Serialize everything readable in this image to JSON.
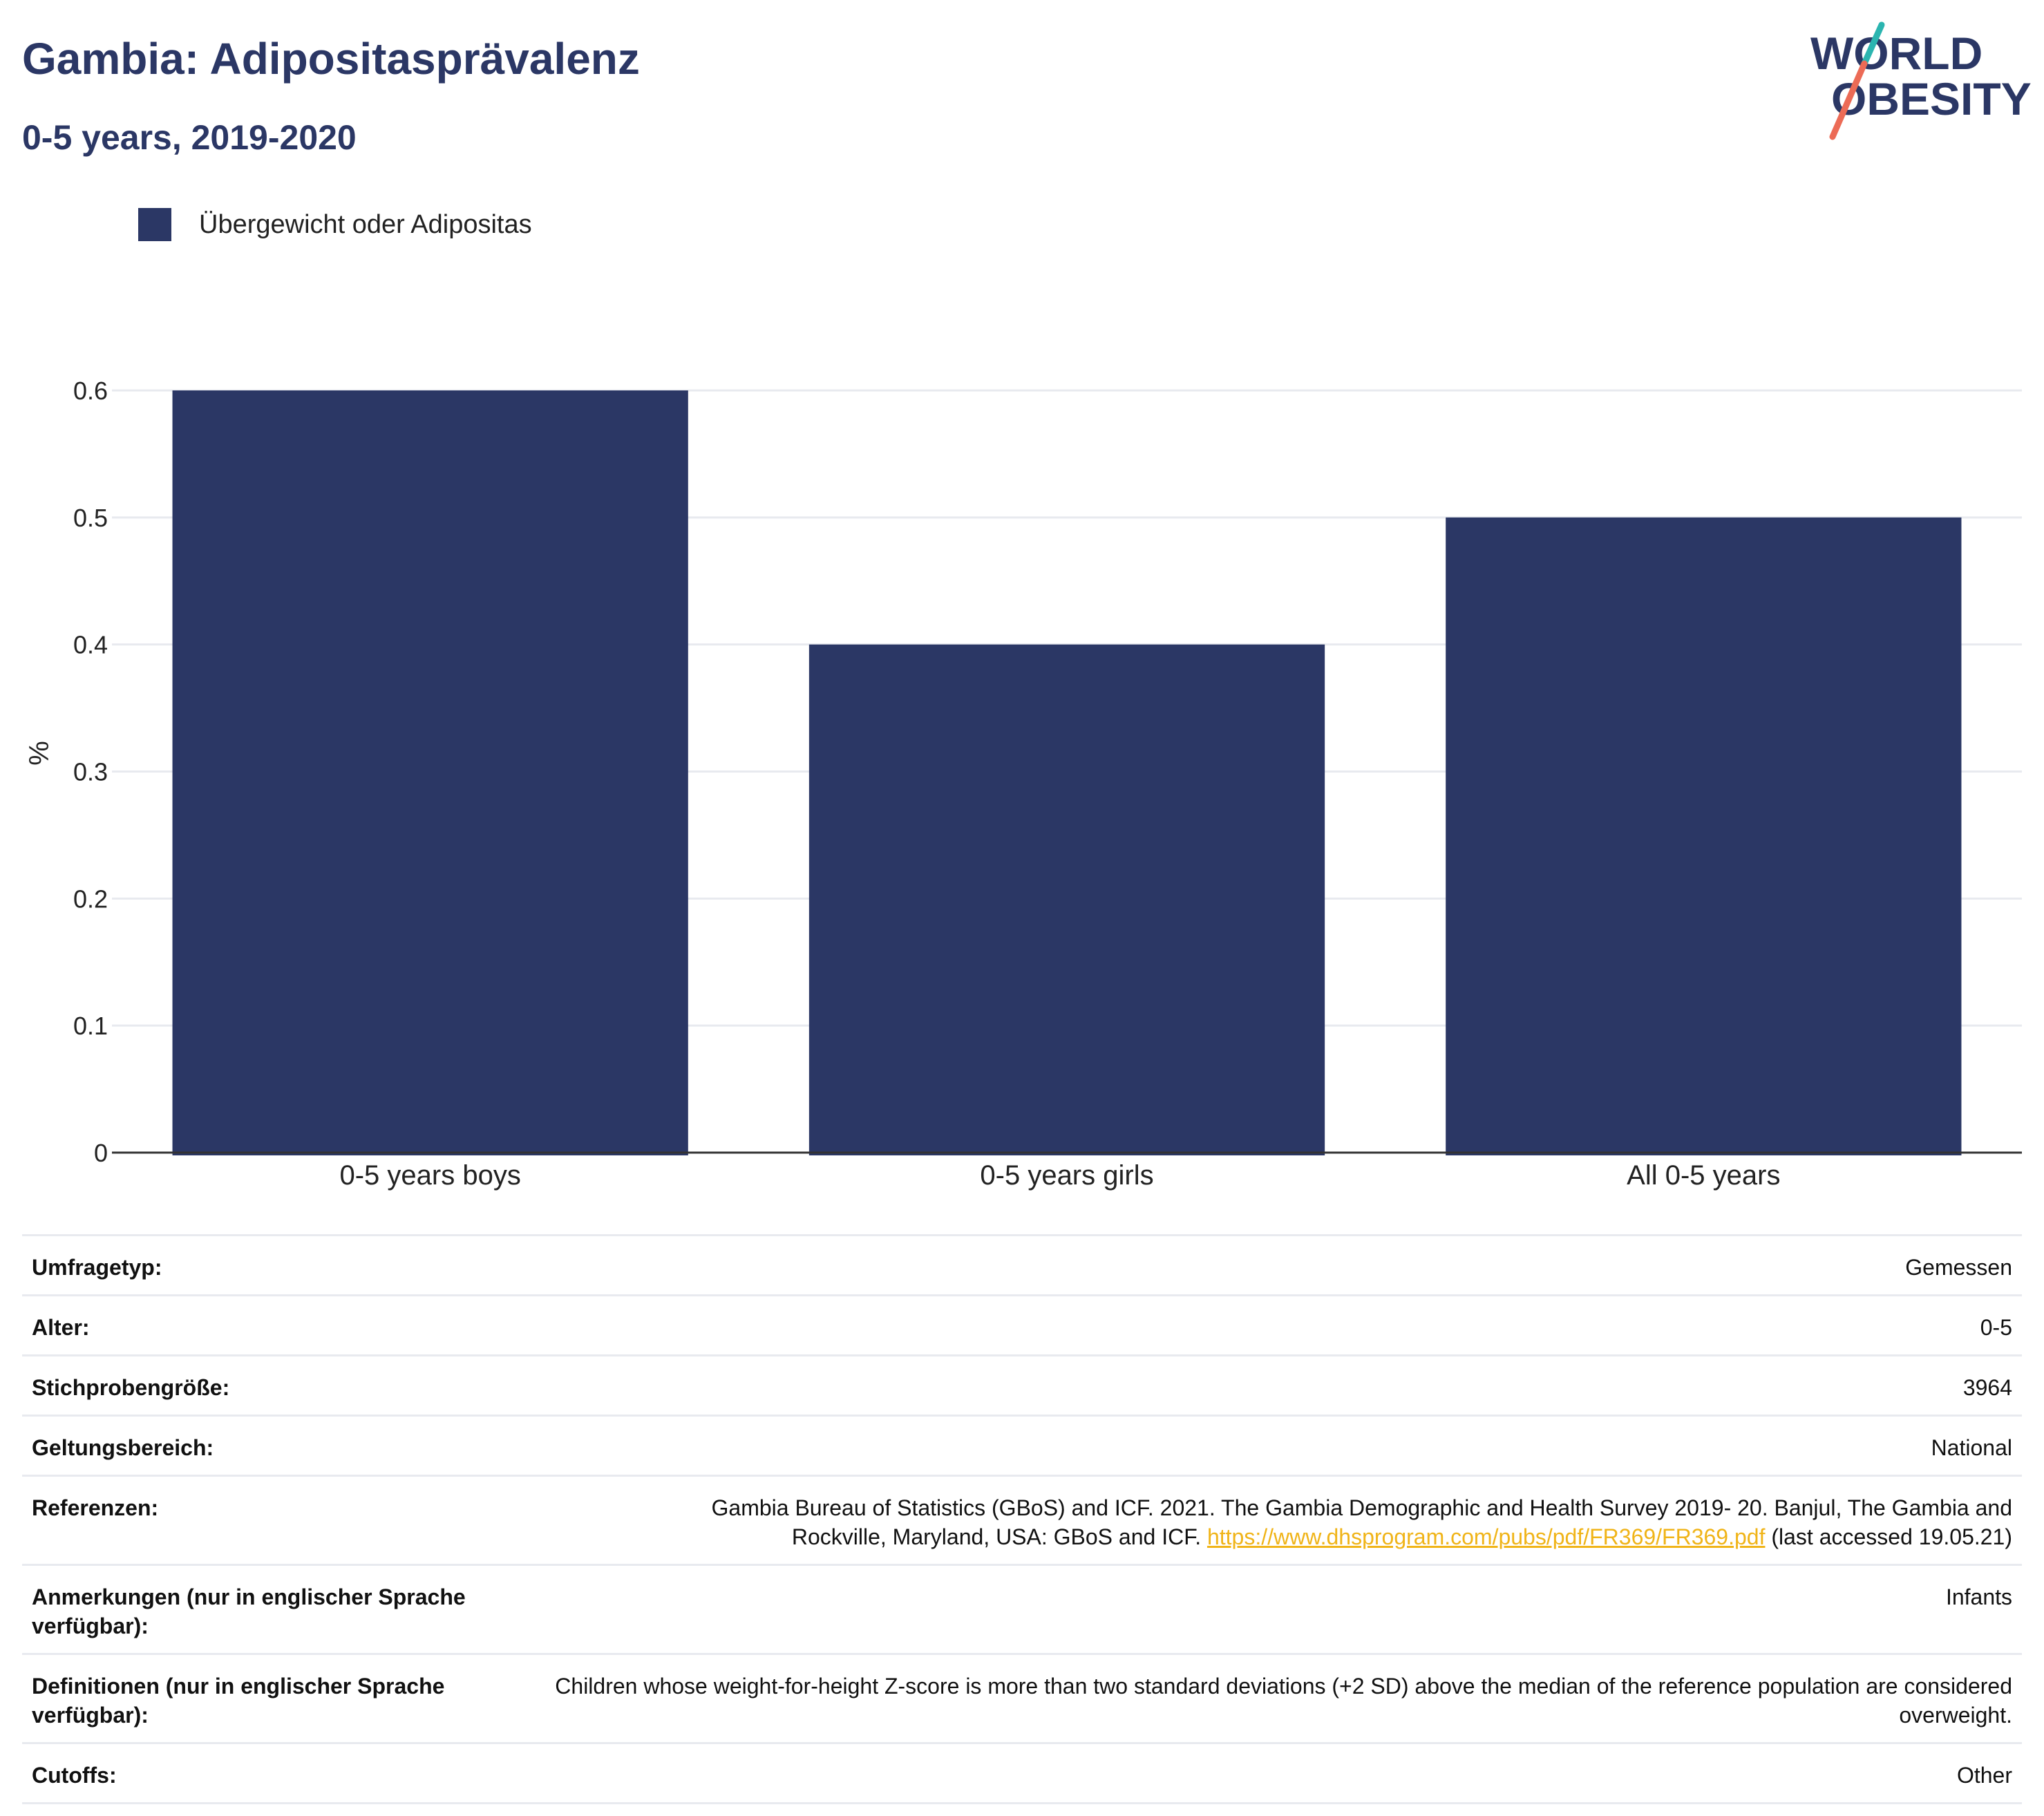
{
  "colors": {
    "primary": "#2b3765",
    "grid": "#e8eaef",
    "axis": "#333333",
    "link": "#f0b418",
    "logo_teal": "#2bb5b0",
    "logo_coral": "#ec6b56"
  },
  "header": {
    "title": "Gambia: Adipositasprävalenz",
    "subtitle": "0-5 years, 2019-2020"
  },
  "logo": {
    "line1": "WORLD",
    "line2": "OBESITY"
  },
  "chart_data": {
    "type": "bar",
    "categories": [
      "0-5 years boys",
      "0-5 years girls",
      "All 0-5 years"
    ],
    "series": [
      {
        "name": "Übergewicht oder Adipositas",
        "values": [
          0.6,
          0.4,
          0.5
        ]
      }
    ],
    "ylabel": "%",
    "xlabel": "",
    "ylim": [
      0,
      0.6
    ],
    "yticks": [
      0,
      0.1,
      0.2,
      0.3,
      0.4,
      0.5,
      0.6
    ],
    "ytick_labels": [
      "0",
      "0.1",
      "0.2",
      "0.3",
      "0.4",
      "0.5",
      "0.6"
    ],
    "grid": true,
    "legend_position": "top-left"
  },
  "meta": {
    "rows": [
      {
        "label": "Umfragetyp:",
        "value": "Gemessen"
      },
      {
        "label": "Alter:",
        "value": "0-5"
      },
      {
        "label": "Stichprobengröße:",
        "value": "3964"
      },
      {
        "label": "Geltungsbereich:",
        "value": "National"
      },
      {
        "label": "Referenzen:",
        "value_pre": "Gambia Bureau of Statistics (GBoS) and ICF. 2021. The Gambia Demographic and Health Survey 2019- 20. Banjul, The Gambia and Rockville, Maryland, USA: GBoS and ICF.",
        "link": "https://www.dhsprogram.com/pubs/pdf/FR369/FR369.pdf",
        "value_post": "(last accessed 19.05.21)"
      },
      {
        "label": "Anmerkungen (nur in englischer Sprache verfügbar):",
        "value": "Infants"
      },
      {
        "label": "Definitionen (nur in englischer Sprache verfügbar):",
        "value": "Children whose weight-for-height Z-score is more than two standard deviations (+2 SD) above the median of the reference population are considered overweight."
      },
      {
        "label": "Cutoffs:",
        "value": "Other"
      }
    ]
  }
}
